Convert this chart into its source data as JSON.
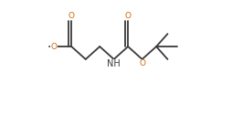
{
  "bg_color": "#ffffff",
  "line_color": "#3a3a3a",
  "O_color": "#cc6600",
  "N_color": "#3a3a3a",
  "lw": 1.3,
  "fs": 6.5,
  "figsize": [
    2.54,
    1.47
  ],
  "dpi": 100,
  "xlim": [
    -0.05,
    1.08
  ],
  "ylim": [
    0.1,
    1.05
  ]
}
